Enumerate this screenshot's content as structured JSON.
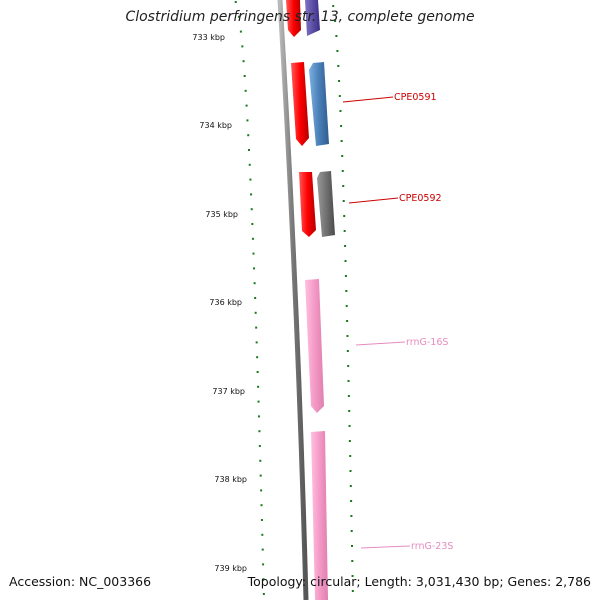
{
  "title": "Clostridium perfringens str. 13, complete genome",
  "footer": {
    "accession": "Accession: NC_003366",
    "summary": "Topology: circular; Length: 3,031,430 bp; Genes: 2,786"
  },
  "ruler": {
    "labels": [
      "733 kbp",
      "734 kbp",
      "735 kbp",
      "736 kbp",
      "737 kbp",
      "738 kbp",
      "739 kbp"
    ],
    "color": "#1a7a1a"
  },
  "features": [
    {
      "type": "cds-forward",
      "color": "#e41a1c"
    },
    {
      "type": "cds-reverse",
      "color": "#5b4ea0"
    },
    {
      "type": "cds-forward",
      "color": "#e41a1c"
    },
    {
      "type": "cds-reverse",
      "color": "#4a7fb8"
    },
    {
      "type": "cds-forward",
      "color": "#e41a1c"
    },
    {
      "type": "cds-reverse",
      "color": "#6e6e6e"
    },
    {
      "type": "rrna",
      "color": "#f49ac6"
    },
    {
      "type": "rrna",
      "color": "#f49ac6"
    }
  ],
  "gene_labels": [
    {
      "text": "CPE0591",
      "color": "#cc0000"
    },
    {
      "text": "CPE0592",
      "color": "#cc0000"
    },
    {
      "text": "rrnG-16S",
      "color": "#e58cbf"
    },
    {
      "text": "rrnG-23S",
      "color": "#e58cbf"
    }
  ],
  "backbone_color": "#808080"
}
